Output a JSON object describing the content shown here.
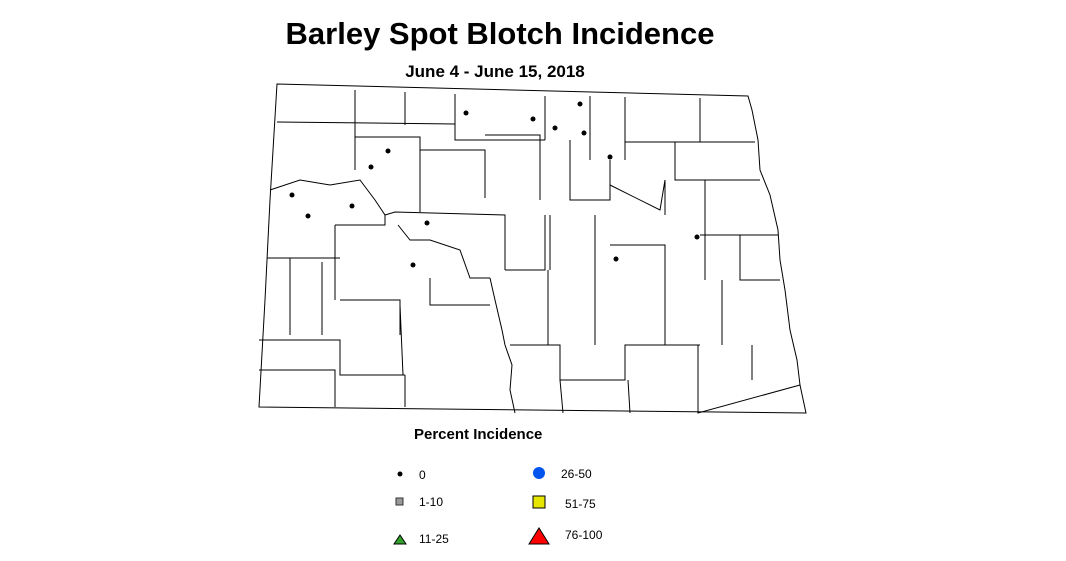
{
  "title": "Barley Spot Blotch Incidence",
  "subtitle": "June 4 - June 15, 2018",
  "legend": {
    "title": "Percent Incidence",
    "items": [
      {
        "label": "0",
        "symbol": "small-dot",
        "color": "#000000"
      },
      {
        "label": "1-10",
        "symbol": "square",
        "color": "#999999"
      },
      {
        "label": "11-25",
        "symbol": "triangle",
        "color": "#33a02c"
      },
      {
        "label": "26-50",
        "symbol": "circle",
        "color": "#0055ee"
      },
      {
        "label": "51-75",
        "symbol": "square",
        "color": "#e6e600"
      },
      {
        "label": "76-100",
        "symbol": "triangle",
        "color": "#ff0000"
      }
    ]
  },
  "observations": {
    "category": "0",
    "count": 15
  }
}
